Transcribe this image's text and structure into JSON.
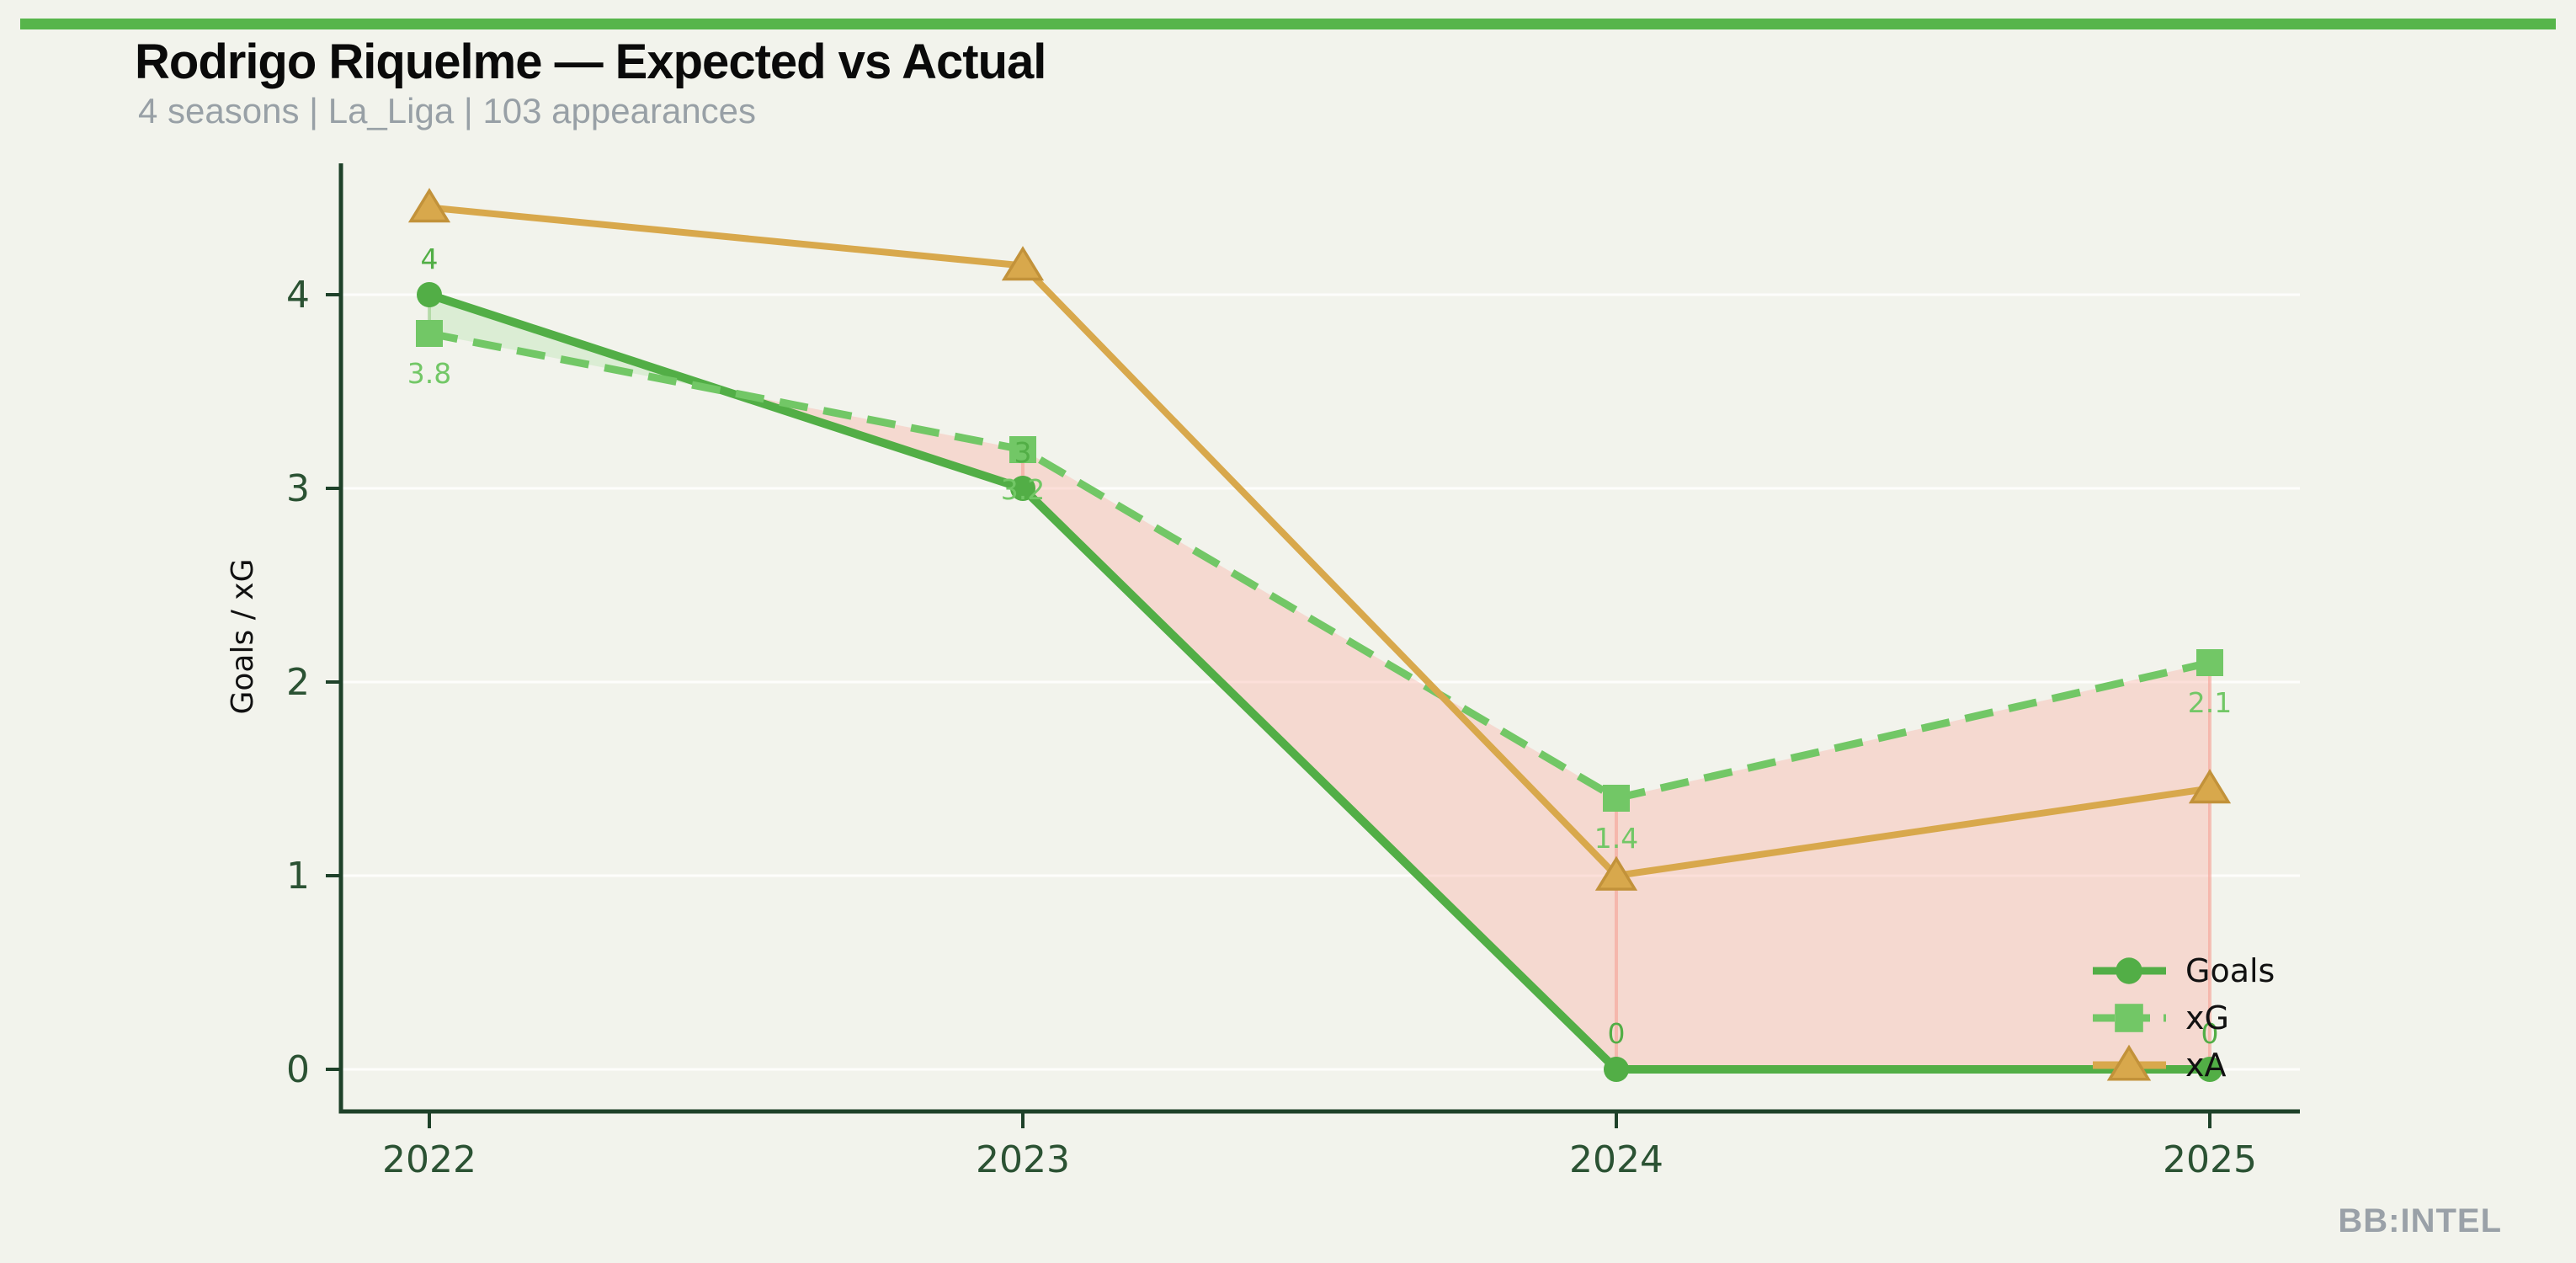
{
  "page": {
    "background": "#f2f3ec",
    "accent_bar_color": "#57b54b",
    "watermark": "BB:INTEL",
    "watermark_color": "#9aa1a8"
  },
  "chart_data": {
    "type": "line",
    "title": "Rodrigo Riquelme — Expected vs Actual",
    "subtitle": "4 seasons | La_Liga | 103 appearances",
    "ylabel": "Goals / xG",
    "x_categories": [
      "2022",
      "2023",
      "2024",
      "2025"
    ],
    "yticks": [
      "0",
      "1",
      "2",
      "3",
      "4"
    ],
    "ylim": [
      0,
      4.7
    ],
    "grid": "faint horizontal gridlines at integer y values",
    "legend_position": "lower right",
    "series": [
      {
        "name": "Goals",
        "marker": "circle",
        "line_style": "solid",
        "color": "#52ae46",
        "values": [
          4,
          3,
          0,
          0
        ],
        "point_labels": [
          "4",
          "3",
          "0",
          "0"
        ],
        "label_side": "above"
      },
      {
        "name": "xG",
        "marker": "square",
        "line_style": "dashed",
        "color": "#72c766",
        "values": [
          3.8,
          3.2,
          1.4,
          2.1
        ],
        "point_labels": [
          "3.8",
          "3.2",
          "1.4",
          "2.1"
        ],
        "label_side": "below"
      },
      {
        "name": "xA",
        "marker": "triangle",
        "line_style": "solid",
        "color": "#d8a84c",
        "marker_edge_color": "#c2923a",
        "values": [
          4.45,
          4.15,
          1.0,
          1.45
        ],
        "point_labels": [
          "",
          "",
          "",
          ""
        ],
        "label_side": "none"
      }
    ],
    "fill_between": {
      "series_a": "Goals",
      "series_b": "xG",
      "above_color": "rgba(186,228,178,0.4)",
      "below_color": "rgba(250,178,168,0.4)",
      "above_seam_color": "rgba(150,205,135,0.6)",
      "below_seam_color": "rgba(245,160,148,0.6)"
    },
    "axis_color": "#1e4129",
    "tick_label_color": "#2b5233",
    "grid_color": "rgba(255,255,255,0.8)",
    "text_color": "#111111"
  }
}
